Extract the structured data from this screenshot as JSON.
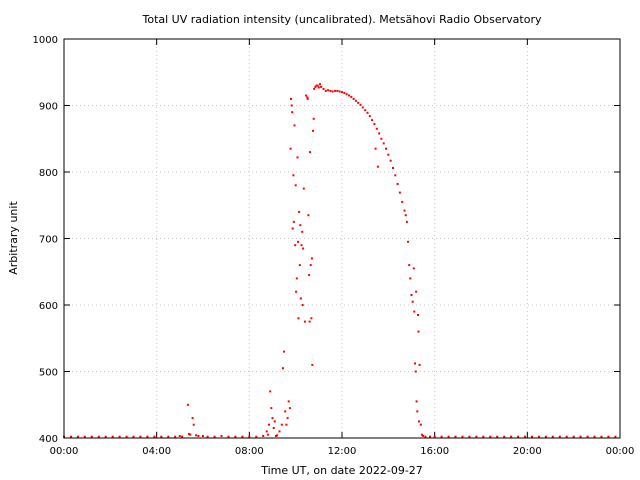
{
  "chart_data": {
    "type": "scatter",
    "title": "Total UV radiation intensity (uncalibrated). Metsähovi Radio Observatory",
    "xlabel": "Time UT, on date 2022-09-27",
    "ylabel": "Arbitrary unit",
    "x_unit": "hours UT",
    "xlim": [
      0,
      24
    ],
    "ylim": [
      400,
      1000
    ],
    "x_ticks": [
      {
        "value": 0,
        "label": "00:00"
      },
      {
        "value": 4,
        "label": "04:00"
      },
      {
        "value": 8,
        "label": "08:00"
      },
      {
        "value": 12,
        "label": "12:00"
      },
      {
        "value": 16,
        "label": "16:00"
      },
      {
        "value": 20,
        "label": "20:00"
      },
      {
        "value": 24,
        "label": "00:00"
      }
    ],
    "y_ticks": [
      {
        "value": 400,
        "label": "400"
      },
      {
        "value": 500,
        "label": "500"
      },
      {
        "value": 600,
        "label": "600"
      },
      {
        "value": 700,
        "label": "700"
      },
      {
        "value": 800,
        "label": "800"
      },
      {
        "value": 900,
        "label": "900"
      },
      {
        "value": 1000,
        "label": "1000"
      }
    ],
    "grid": true,
    "marker_color": "#ff0000",
    "series": [
      {
        "points": [
          [
            0.0,
            402
          ],
          [
            0.3,
            402
          ],
          [
            0.6,
            402
          ],
          [
            0.9,
            402
          ],
          [
            1.2,
            402
          ],
          [
            1.5,
            402
          ],
          [
            1.8,
            402
          ],
          [
            2.1,
            402
          ],
          [
            2.4,
            402
          ],
          [
            2.7,
            402
          ],
          [
            3.0,
            402
          ],
          [
            3.3,
            402
          ],
          [
            3.6,
            402
          ],
          [
            3.9,
            402
          ],
          [
            4.2,
            402
          ],
          [
            4.5,
            402
          ],
          [
            4.8,
            402
          ],
          [
            5.0,
            403
          ],
          [
            5.1,
            402
          ],
          [
            5.35,
            450
          ],
          [
            5.4,
            406
          ],
          [
            5.45,
            405
          ],
          [
            5.55,
            430
          ],
          [
            5.6,
            420
          ],
          [
            5.7,
            404
          ],
          [
            5.8,
            403
          ],
          [
            6.0,
            403
          ],
          [
            6.2,
            402
          ],
          [
            6.5,
            402
          ],
          [
            6.8,
            403
          ],
          [
            7.1,
            402
          ],
          [
            7.4,
            402
          ],
          [
            7.7,
            402
          ],
          [
            8.0,
            402
          ],
          [
            8.3,
            402
          ],
          [
            8.6,
            403
          ],
          [
            8.75,
            410
          ],
          [
            8.8,
            405
          ],
          [
            8.85,
            420
          ],
          [
            8.9,
            470
          ],
          [
            8.95,
            445
          ],
          [
            9.0,
            430
          ],
          [
            9.05,
            415
          ],
          [
            9.1,
            425
          ],
          [
            9.15,
            403
          ],
          [
            9.2,
            404
          ],
          [
            9.3,
            410
          ],
          [
            9.4,
            420
          ],
          [
            9.45,
            505
          ],
          [
            9.5,
            530
          ],
          [
            9.55,
            440
          ],
          [
            9.6,
            420
          ],
          [
            9.65,
            430
          ],
          [
            9.7,
            455
          ],
          [
            9.75,
            445
          ],
          [
            9.78,
            835
          ],
          [
            9.8,
            910
          ],
          [
            9.83,
            900
          ],
          [
            9.85,
            890
          ],
          [
            9.87,
            715
          ],
          [
            9.9,
            795
          ],
          [
            9.92,
            725
          ],
          [
            9.95,
            870
          ],
          [
            9.98,
            690
          ],
          [
            10.0,
            780
          ],
          [
            10.02,
            620
          ],
          [
            10.05,
            640
          ],
          [
            10.08,
            822
          ],
          [
            10.1,
            695
          ],
          [
            10.12,
            580
          ],
          [
            10.15,
            740
          ],
          [
            10.18,
            660
          ],
          [
            10.2,
            720
          ],
          [
            10.22,
            610
          ],
          [
            10.25,
            690
          ],
          [
            10.28,
            710
          ],
          [
            10.3,
            600
          ],
          [
            10.32,
            685
          ],
          [
            10.35,
            775
          ],
          [
            10.4,
            575
          ],
          [
            10.45,
            915
          ],
          [
            10.5,
            912
          ],
          [
            10.52,
            910
          ],
          [
            10.55,
            735
          ],
          [
            10.58,
            645
          ],
          [
            10.6,
            575
          ],
          [
            10.62,
            830
          ],
          [
            10.65,
            660
          ],
          [
            10.68,
            580
          ],
          [
            10.7,
            670
          ],
          [
            10.72,
            510
          ],
          [
            10.75,
            862
          ],
          [
            10.78,
            880
          ],
          [
            10.8,
            925
          ],
          [
            10.85,
            928
          ],
          [
            10.9,
            930
          ],
          [
            10.95,
            930
          ],
          [
            11.0,
            927
          ],
          [
            11.05,
            932
          ],
          [
            11.1,
            928
          ],
          [
            11.2,
            925
          ],
          [
            11.3,
            922
          ],
          [
            11.4,
            923
          ],
          [
            11.5,
            922
          ],
          [
            11.6,
            921
          ],
          [
            11.7,
            922
          ],
          [
            11.8,
            922
          ],
          [
            11.9,
            921
          ],
          [
            12.0,
            920
          ],
          [
            12.1,
            919
          ],
          [
            12.2,
            917
          ],
          [
            12.3,
            915
          ],
          [
            12.4,
            913
          ],
          [
            12.5,
            910
          ],
          [
            12.6,
            907
          ],
          [
            12.7,
            904
          ],
          [
            12.8,
            901
          ],
          [
            12.9,
            897
          ],
          [
            13.0,
            893
          ],
          [
            13.1,
            889
          ],
          [
            13.2,
            884
          ],
          [
            13.3,
            878
          ],
          [
            13.4,
            872
          ],
          [
            13.45,
            835
          ],
          [
            13.5,
            865
          ],
          [
            13.55,
            808
          ],
          [
            13.6,
            858
          ],
          [
            13.7,
            850
          ],
          [
            13.8,
            843
          ],
          [
            13.9,
            835
          ],
          [
            14.0,
            826
          ],
          [
            14.1,
            817
          ],
          [
            14.2,
            806
          ],
          [
            14.3,
            795
          ],
          [
            14.4,
            782
          ],
          [
            14.5,
            769
          ],
          [
            14.6,
            755
          ],
          [
            14.7,
            742
          ],
          [
            14.75,
            735
          ],
          [
            14.8,
            725
          ],
          [
            14.85,
            695
          ],
          [
            14.9,
            660
          ],
          [
            14.95,
            640
          ],
          [
            15.0,
            615
          ],
          [
            15.05,
            605
          ],
          [
            15.1,
            655
          ],
          [
            15.12,
            590
          ],
          [
            15.15,
            512
          ],
          [
            15.18,
            500
          ],
          [
            15.2,
            620
          ],
          [
            15.22,
            455
          ],
          [
            15.25,
            440
          ],
          [
            15.28,
            585
          ],
          [
            15.3,
            560
          ],
          [
            15.32,
            425
          ],
          [
            15.35,
            510
          ],
          [
            15.4,
            420
          ],
          [
            15.45,
            405
          ],
          [
            15.5,
            403
          ],
          [
            15.6,
            402
          ],
          [
            15.8,
            402
          ],
          [
            16.0,
            402
          ],
          [
            16.3,
            402
          ],
          [
            16.6,
            402
          ],
          [
            16.9,
            402
          ],
          [
            17.2,
            402
          ],
          [
            17.5,
            402
          ],
          [
            17.8,
            402
          ],
          [
            18.1,
            402
          ],
          [
            18.4,
            402
          ],
          [
            18.7,
            402
          ],
          [
            19.0,
            402
          ],
          [
            19.3,
            402
          ],
          [
            19.6,
            402
          ],
          [
            19.9,
            402
          ],
          [
            20.2,
            402
          ],
          [
            20.5,
            402
          ],
          [
            20.8,
            402
          ],
          [
            21.1,
            402
          ],
          [
            21.4,
            402
          ],
          [
            21.7,
            402
          ],
          [
            22.0,
            402
          ],
          [
            22.3,
            402
          ],
          [
            22.6,
            402
          ],
          [
            22.9,
            402
          ],
          [
            23.2,
            402
          ],
          [
            23.5,
            402
          ],
          [
            23.8,
            402
          ]
        ]
      }
    ]
  }
}
